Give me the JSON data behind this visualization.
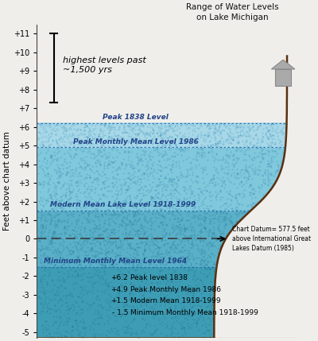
{
  "title_line1": "Range of Water Levels",
  "title_line2": "on Lake Michigan",
  "ylabel": "Feet above chart datum",
  "ylim": [
    -5.3,
    11.5
  ],
  "yticks": [
    -5,
    -4,
    -3,
    -2,
    -1,
    0,
    1,
    2,
    3,
    4,
    5,
    6,
    7,
    8,
    9,
    10,
    11
  ],
  "ytick_labels": [
    "-5",
    "-4",
    "-3",
    "-2",
    "-1",
    "0",
    "+1",
    "+2",
    "+3",
    "+4",
    "+5",
    "+6",
    "+7",
    "+8",
    "+9",
    "+10",
    "+11"
  ],
  "levels": {
    "peak_1838": 6.2,
    "peak_monthly_1986": 4.9,
    "modern_mean": 1.5,
    "min_monthly_1964": -1.5,
    "chart_datum": 0.0
  },
  "level_labels": {
    "peak_1838": "Peak 1838 Level",
    "peak_monthly_1986": "Peak Monthly Mean Level 1986",
    "modern_mean": "Modern Mean Lake Level 1918-1999",
    "min_monthly_1964": "Minimum Monthly Mean Level 1964"
  },
  "annotations": {
    "highest_text": "highest levels past\n~1,500 yrs",
    "chart_datum_text": "Chart Datum= 577.5 feet\nabove International Great\nLakes Datum (1985)"
  },
  "legend_lines": [
    [
      "+6.2",
      "Peak level 1838"
    ],
    [
      "+4.9",
      "Peak Monthly Mean 1986"
    ],
    [
      "+1.5",
      "Modern Mean 1918-1999"
    ],
    [
      "- 1.5",
      "Minimum Monthly Mean 1918-1999"
    ]
  ],
  "colors": {
    "background": "#f0eeeb",
    "water_top": "#b8dce8",
    "water_mid": "#8ec8dc",
    "water_deep": "#60a8c8",
    "water_bottom": "#4090b8",
    "shore_brown": "#5a3010",
    "shore_tan": "#c8a060",
    "text_blue": "#224488",
    "text_dark": "#111111",
    "dotted_line": "#4488cc"
  }
}
